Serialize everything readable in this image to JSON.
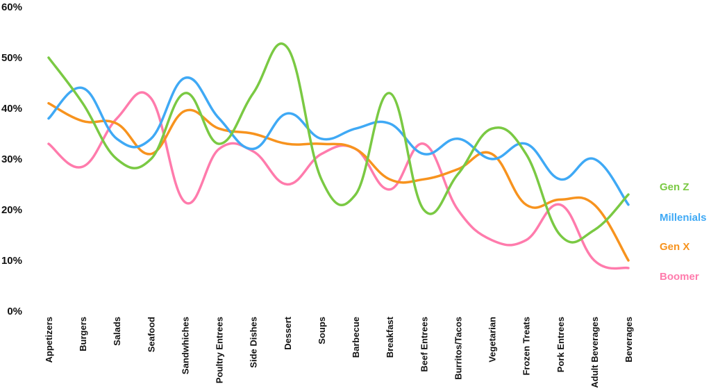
{
  "chart_data": {
    "type": "line",
    "categories": [
      "Appetizers",
      "Burgers",
      "Salads",
      "Seafood",
      "Sandwhiches",
      "Poultry Entrees",
      "Side Dishes",
      "Dessert",
      "Soups",
      "Barbecue",
      "Breakfast",
      "Beef Entrees",
      "Burritos/Tacos",
      "Vegetarian",
      "Frozen Treats",
      "Pork Entrees",
      "Adult Beverages",
      "Beverages"
    ],
    "series": [
      {
        "name": "Gen Z",
        "color": "#7ac943",
        "values": [
          50,
          41,
          30,
          30,
          43,
          33,
          43,
          52,
          26,
          23,
          43,
          20,
          27,
          36,
          31,
          15,
          16,
          23
        ]
      },
      {
        "name": "Millenials",
        "color": "#3fa9f5",
        "values": [
          38,
          44,
          34,
          34,
          46,
          38,
          32,
          39,
          34,
          36,
          37,
          31,
          34,
          30,
          33,
          26,
          30,
          21
        ]
      },
      {
        "name": "Gen X",
        "color": "#f7931e",
        "values": [
          41,
          37.5,
          37,
          31,
          39.5,
          36,
          35,
          33,
          33,
          32,
          26,
          26,
          28,
          31,
          21,
          22,
          21,
          10
        ]
      },
      {
        "name": "Boomer",
        "color": "#ff7bac",
        "values": [
          33,
          28.5,
          38,
          42,
          21.5,
          32,
          31.5,
          25,
          31,
          32,
          24,
          33,
          20,
          14,
          14,
          21,
          10,
          8.5
        ]
      }
    ],
    "y_ticks": [
      "0%",
      "10%",
      "20%",
      "30%",
      "40%",
      "50%",
      "60%"
    ],
    "ylim": [
      0,
      60
    ],
    "legend_placement": "right",
    "grid": false
  }
}
